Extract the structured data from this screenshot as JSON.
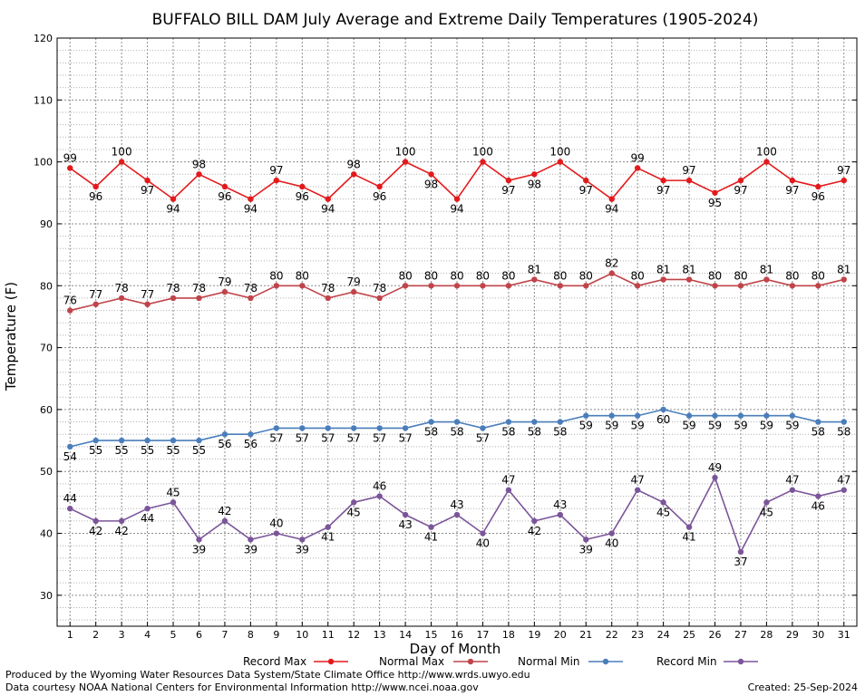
{
  "chart_data": {
    "type": "line",
    "title": "BUFFALO BILL DAM July Average and Extreme Daily Temperatures (1905-2024)",
    "xlabel": "Day of Month",
    "ylabel": "Temperature (F)",
    "xlim": [
      1,
      31
    ],
    "ylim": [
      25,
      120
    ],
    "yticks": [
      30,
      40,
      50,
      60,
      70,
      80,
      90,
      100,
      110,
      120
    ],
    "x": [
      1,
      2,
      3,
      4,
      5,
      6,
      7,
      8,
      9,
      10,
      11,
      12,
      13,
      14,
      15,
      16,
      17,
      18,
      19,
      20,
      21,
      22,
      23,
      24,
      25,
      26,
      27,
      28,
      29,
      30,
      31
    ],
    "grid": true,
    "legend_position": "bottom",
    "series": [
      {
        "name": "Record Max",
        "color": "#e31a1c",
        "values": [
          99,
          96,
          100,
          97,
          94,
          98,
          96,
          94,
          97,
          96,
          94,
          98,
          96,
          100,
          98,
          94,
          100,
          97,
          98,
          100,
          97,
          94,
          99,
          97,
          97,
          95,
          97,
          100,
          97,
          96,
          97
        ]
      },
      {
        "name": "Normal Max",
        "color": "#c0444a",
        "values": [
          76,
          77,
          78,
          77,
          78,
          78,
          79,
          78,
          80,
          80,
          78,
          79,
          78,
          80,
          80,
          80,
          80,
          80,
          81,
          80,
          80,
          82,
          80,
          81,
          81,
          80,
          80,
          81,
          80,
          80,
          81
        ]
      },
      {
        "name": "Normal Min",
        "color": "#4a7ebb",
        "values": [
          54,
          55,
          55,
          55,
          55,
          55,
          56,
          56,
          57,
          57,
          57,
          57,
          57,
          57,
          58,
          58,
          57,
          58,
          58,
          58,
          59,
          59,
          59,
          60,
          59,
          59,
          59,
          59,
          59,
          58,
          58
        ]
      },
      {
        "name": "Record Min",
        "color": "#7b559a",
        "values": [
          44,
          42,
          42,
          44,
          45,
          39,
          42,
          39,
          40,
          39,
          41,
          45,
          46,
          43,
          41,
          43,
          40,
          47,
          42,
          43,
          39,
          40,
          47,
          45,
          41,
          49,
          37,
          45,
          47,
          46,
          47
        ]
      }
    ]
  },
  "footer": {
    "produced_by": "Produced by the Wyoming Water Resources Data System/State Climate Office http://www.wrds.uwyo.edu",
    "courtesy": "Data courtesy NOAA National Centers for Environmental Information http://www.ncei.noaa.gov",
    "created": "Created:  25-Sep-2024"
  }
}
